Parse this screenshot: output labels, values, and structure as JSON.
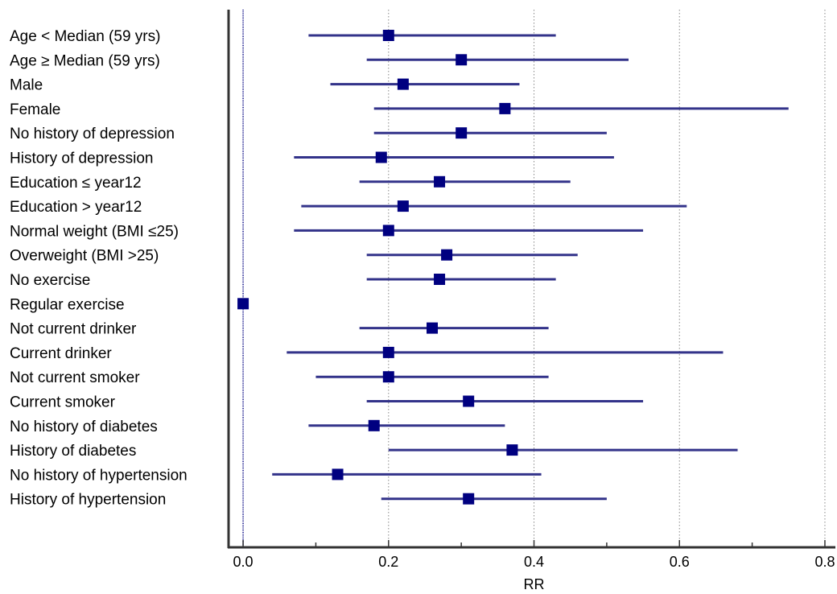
{
  "chart_data": {
    "type": "forest",
    "title": "",
    "xlabel": "RR",
    "ylabel": "",
    "xlim": [
      -0.02,
      0.81
    ],
    "xticks": [
      0.0,
      0.2,
      0.4,
      0.6,
      0.8
    ],
    "xtick_labels": [
      "0.0",
      "0.2",
      "0.4",
      "0.6",
      "0.8"
    ],
    "grid": "vertical dotted at major ticks",
    "reference_line": 0.0,
    "colors": {
      "estimate": "#000080",
      "interval": "#33338a",
      "grid": "#888888",
      "axis": "#333333"
    },
    "rows": [
      {
        "label": "Age < Median (59 yrs)",
        "rr": 0.2,
        "lower": 0.09,
        "upper": 0.43
      },
      {
        "label": "Age ≥ Median  (59 yrs)",
        "rr": 0.3,
        "lower": 0.17,
        "upper": 0.53
      },
      {
        "label": "Male",
        "rr": 0.22,
        "lower": 0.12,
        "upper": 0.38
      },
      {
        "label": "Female",
        "rr": 0.36,
        "lower": 0.18,
        "upper": 0.75
      },
      {
        "label": "No history of depression",
        "rr": 0.3,
        "lower": 0.18,
        "upper": 0.5
      },
      {
        "label": "History of depression",
        "rr": 0.19,
        "lower": 0.07,
        "upper": 0.51
      },
      {
        "label": "Education ≤ year12",
        "rr": 0.27,
        "lower": 0.16,
        "upper": 0.45
      },
      {
        "label": "Education > year12",
        "rr": 0.22,
        "lower": 0.08,
        "upper": 0.61
      },
      {
        "label": "Normal weight (BMI ≤25)",
        "rr": 0.2,
        "lower": 0.07,
        "upper": 0.55
      },
      {
        "label": "Overweight (BMI >25)",
        "rr": 0.28,
        "lower": 0.17,
        "upper": 0.46
      },
      {
        "label": "No exercise",
        "rr": 0.27,
        "lower": 0.17,
        "upper": 0.43
      },
      {
        "label": "Regular exercise",
        "rr": 0.0,
        "lower": 0.0,
        "upper": 0.0
      },
      {
        "label": "Not current drinker",
        "rr": 0.26,
        "lower": 0.16,
        "upper": 0.42
      },
      {
        "label": "Current drinker",
        "rr": 0.2,
        "lower": 0.06,
        "upper": 0.66
      },
      {
        "label": "Not current smoker",
        "rr": 0.2,
        "lower": 0.1,
        "upper": 0.42
      },
      {
        "label": "Current smoker",
        "rr": 0.31,
        "lower": 0.17,
        "upper": 0.55
      },
      {
        "label": "No history of diabetes",
        "rr": 0.18,
        "lower": 0.09,
        "upper": 0.36
      },
      {
        "label": "History of diabetes",
        "rr": 0.37,
        "lower": 0.2,
        "upper": 0.68
      },
      {
        "label": "No history of hypertension",
        "rr": 0.13,
        "lower": 0.04,
        "upper": 0.41
      },
      {
        "label": "History of hypertension",
        "rr": 0.31,
        "lower": 0.19,
        "upper": 0.5
      }
    ]
  }
}
